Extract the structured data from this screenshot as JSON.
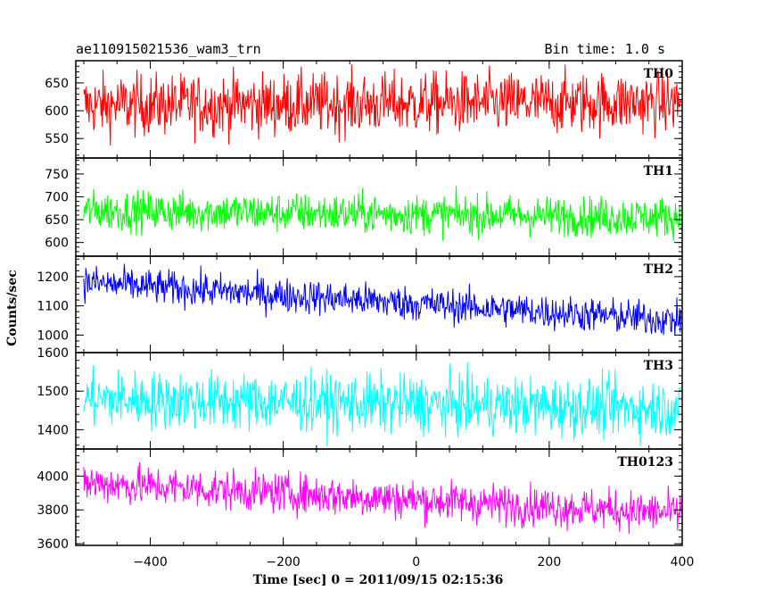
{
  "header": {
    "left_title": "ae110915021536_wam3_trn",
    "right_title": "Bin time: 1.0 s"
  },
  "chart_data": [
    {
      "type": "line",
      "panel": "TH0",
      "label": "TH0",
      "color": "#ff0000",
      "xlim": [
        -512,
        400
      ],
      "ylim": [
        515,
        690
      ],
      "yticks": [
        550,
        600,
        650
      ],
      "mean_start": 610,
      "mean_end": 615,
      "amplitude": 28,
      "series": [
        {
          "name": "TH0",
          "x_range": [
            -500,
            400
          ],
          "values_summary": "~610 ±40 counts/sec"
        }
      ]
    },
    {
      "type": "line",
      "panel": "TH1",
      "label": "TH1",
      "color": "#00ff00",
      "xlim": [
        -512,
        400
      ],
      "ylim": [
        570,
        785
      ],
      "yticks": [
        600,
        650,
        700,
        750
      ],
      "mean_start": 670,
      "mean_end": 655,
      "amplitude": 22,
      "series": [
        {
          "name": "TH1",
          "x_range": [
            -500,
            400
          ],
          "values_summary": "~665 ±35 counts/sec"
        }
      ]
    },
    {
      "type": "line",
      "panel": "TH2",
      "label": "TH2",
      "color": "#0000ff",
      "xlim": [
        -512,
        400
      ],
      "ylim": [
        940,
        1270
      ],
      "yticks": [
        1000,
        1100,
        1200
      ],
      "mean_start": 1180,
      "mean_end": 1050,
      "amplitude": 30,
      "series": [
        {
          "name": "TH2",
          "x_range": [
            -500,
            400
          ],
          "values_summary": "declining ~1180 to ~1050 counts/sec"
        }
      ]
    },
    {
      "type": "line",
      "panel": "TH3",
      "label": "TH3",
      "color": "#00ffff",
      "xlim": [
        -512,
        400
      ],
      "ylim": [
        1350,
        1600
      ],
      "yticks": [
        1400,
        1500,
        1600
      ],
      "mean_start": 1480,
      "mean_end": 1455,
      "amplitude": 38,
      "series": [
        {
          "name": "TH3",
          "x_range": [
            -500,
            400
          ],
          "values_summary": "~1470 ±60 counts/sec"
        }
      ]
    },
    {
      "type": "line",
      "panel": "TH0123",
      "label": "TH0123",
      "color": "#ff00ff",
      "xlim": [
        -512,
        400
      ],
      "ylim": [
        3590,
        4160
      ],
      "yticks": [
        3600,
        3800,
        4000
      ],
      "mean_start": 3960,
      "mean_end": 3780,
      "amplitude": 60,
      "series": [
        {
          "name": "TH0123",
          "x_range": [
            -500,
            400
          ],
          "values_summary": "declining ~3960 to ~3780 counts/sec"
        }
      ]
    }
  ],
  "axes": {
    "ylabel": "Counts/sec",
    "xlabel": "Time [sec] 0 = 2011/09/15 02:15:36",
    "xticks": [
      -400,
      -200,
      0,
      200,
      400
    ],
    "x_minor_step": 50
  }
}
